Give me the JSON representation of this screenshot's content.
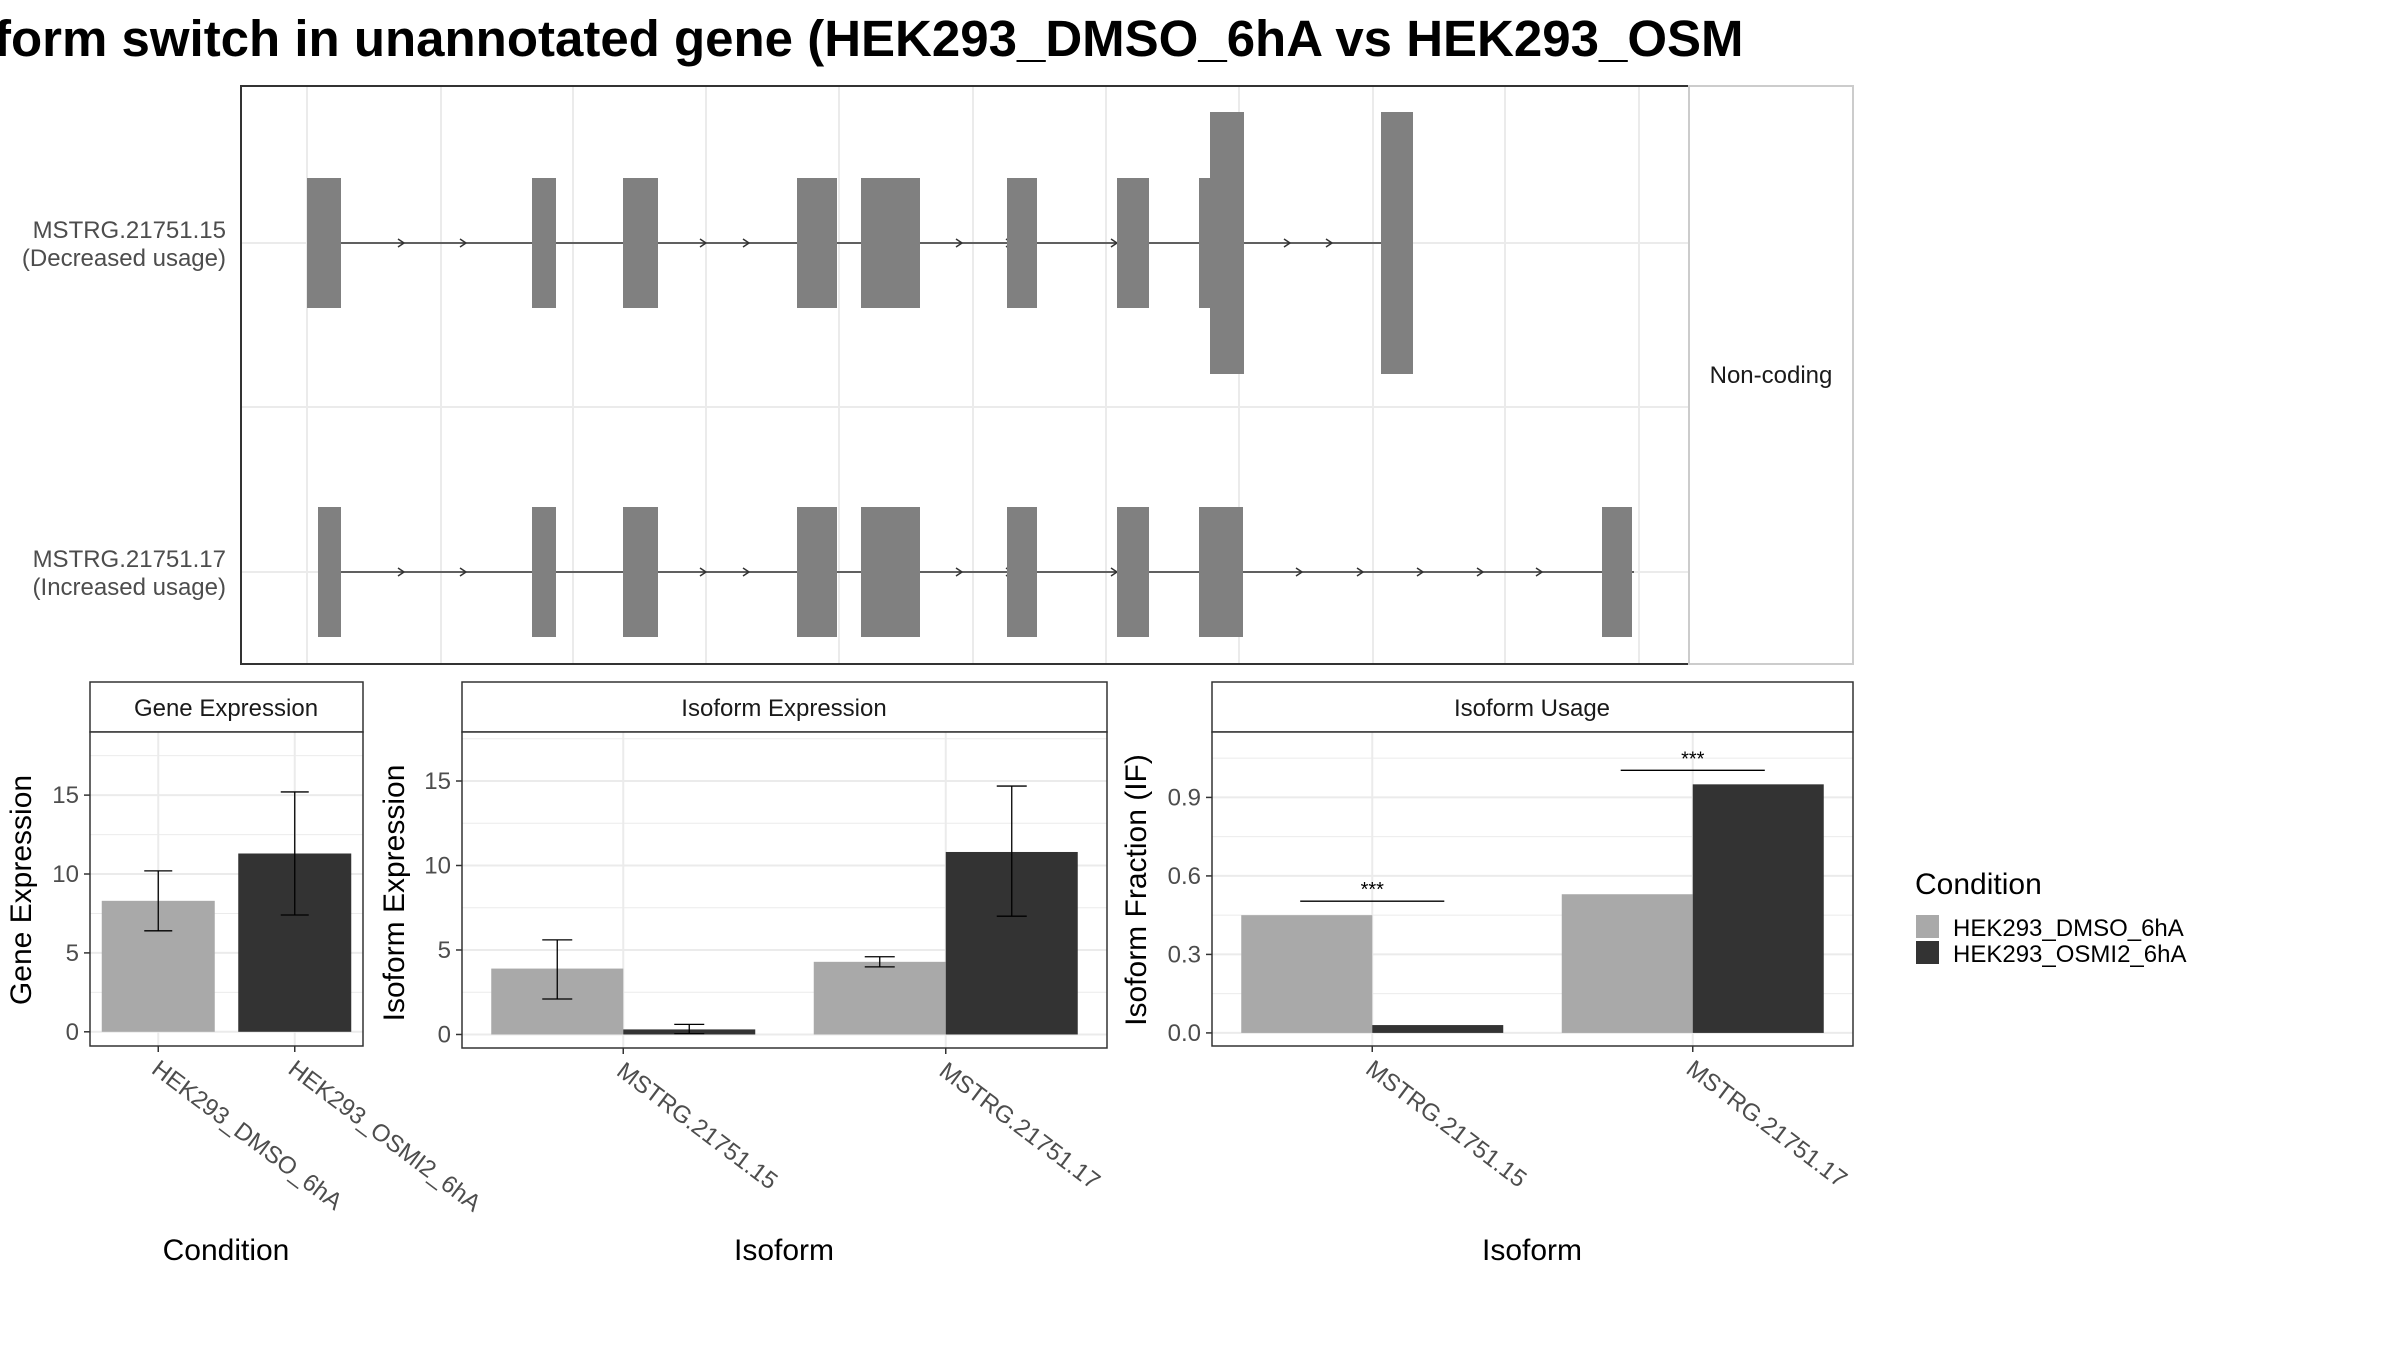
{
  "title": "form switch in unannotated gene (HEK293_DMSO_6hA vs HEK293_OSM",
  "colors": {
    "dmso": "#a9a9a9",
    "osmi": "#333333",
    "exon": "#808080",
    "grid": "#ebebeb",
    "panel_border": "#333333",
    "strip_border": "#cccccc",
    "text_dark": "#1a1a1a",
    "text_tick": "#4d4d4d"
  },
  "structure": {
    "facet_label": "Non-coding",
    "isoforms": [
      {
        "id": "MSTRG.21751.15",
        "label_line1": "MSTRG.21751.15",
        "label_line2": "(Decreased usage)"
      },
      {
        "id": "MSTRG.21751.17",
        "label_line1": "MSTRG.21751.17",
        "label_line2": "(Increased usage)"
      }
    ]
  },
  "legend": {
    "title": "Condition",
    "items": [
      "HEK293_DMSO_6hA",
      "HEK293_OSMI2_6hA"
    ]
  },
  "chart_data": [
    {
      "type": "bar",
      "title": "Gene Expression",
      "xlabel": "Condition",
      "ylabel": "Gene Expression",
      "categories": [
        "HEK293_DMSO_6hA",
        "HEK293_OSMI2_6hA"
      ],
      "values": [
        8.3,
        11.3
      ],
      "error_low": [
        6.4,
        7.4
      ],
      "error_high": [
        10.2,
        15.2
      ],
      "ylim": [
        -0.9,
        19
      ],
      "yticks": [
        0,
        5,
        10,
        15
      ],
      "grid": true
    },
    {
      "type": "bar",
      "title": "Isoform Expression",
      "xlabel": "Isoform",
      "ylabel": "Isoform Expression",
      "categories": [
        "MSTRG.21751.15",
        "MSTRG.21751.17"
      ],
      "series": [
        {
          "name": "HEK293_DMSO_6hA",
          "values": [
            3.9,
            4.3
          ],
          "error_low": [
            2.1,
            4.0
          ],
          "error_high": [
            5.6,
            4.6
          ]
        },
        {
          "name": "HEK293_OSMI2_6hA",
          "values": [
            0.3,
            10.8
          ],
          "error_low": [
            0.05,
            7.0
          ],
          "error_high": [
            0.6,
            14.7
          ]
        }
      ],
      "ylim": [
        -0.8,
        17.9
      ],
      "yticks": [
        0,
        5,
        10,
        15
      ],
      "grid": true
    },
    {
      "type": "bar",
      "title": "Isoform Usage",
      "xlabel": "Isoform",
      "ylabel": "Isoform Fraction (IF)",
      "categories": [
        "MSTRG.21751.15",
        "MSTRG.21751.17"
      ],
      "series": [
        {
          "name": "HEK293_DMSO_6hA",
          "values": [
            0.45,
            0.53
          ]
        },
        {
          "name": "HEK293_OSMI2_6hA",
          "values": [
            0.03,
            0.95
          ]
        }
      ],
      "significance": [
        "***",
        "***"
      ],
      "ylim": [
        -0.05,
        1.15
      ],
      "yticks": [
        "0.0",
        "0.3",
        "0.6",
        "0.9"
      ],
      "grid": true
    }
  ]
}
